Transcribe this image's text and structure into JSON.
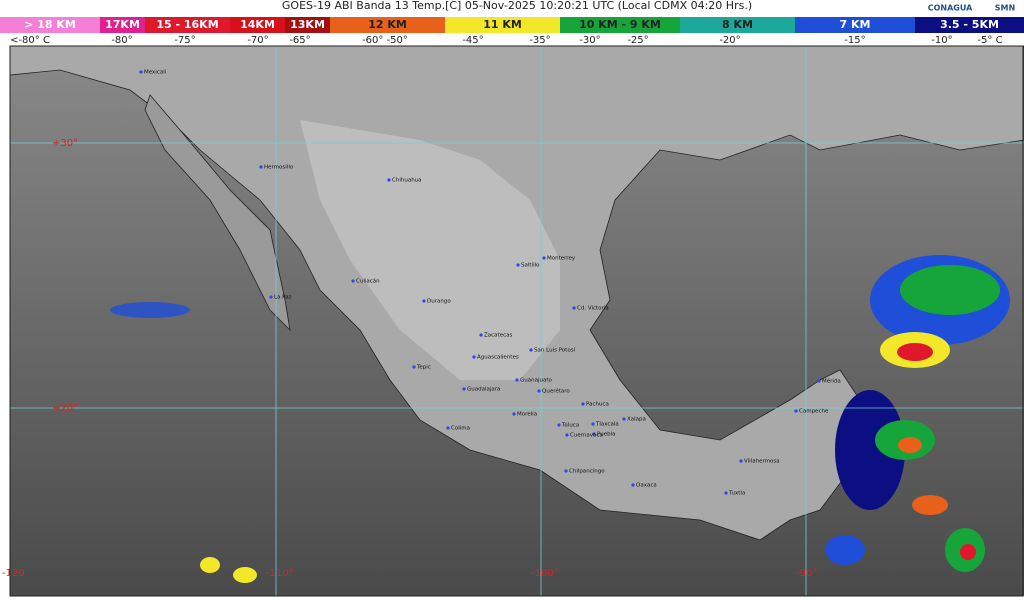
{
  "header": {
    "title": "GOES-19 ABI Banda 13 Temp.[C] 05-Nov-2025 10:20:21 UTC (Local CDMX  04:20 Hrs.)",
    "scale": [
      {
        "label": "> 18 KM",
        "color": "#f47fd6"
      },
      {
        "label": "17KM",
        "color": "#e0208f"
      },
      {
        "label": "15 - 16KM",
        "color": "#e0182c"
      },
      {
        "label": "14KM",
        "color": "#d8101c"
      },
      {
        "label": "13KM",
        "color": "#a50f10"
      },
      {
        "label": "12 KM",
        "color": "#e8611a"
      },
      {
        "label": "11 KM",
        "color": "#f3e72a"
      },
      {
        "label": "10 KM - 9 KM",
        "color": "#16a53a"
      },
      {
        "label": "8 KM",
        "color": "#1ca89a"
      },
      {
        "label": "7 KM",
        "color": "#1f4fd8"
      },
      {
        "label": "3.5 - 5KM",
        "color": "#0b0f82"
      }
    ],
    "temps": [
      "<-80° C",
      "-80°",
      "-75°",
      "-70°",
      "-65°",
      "-60°  -50°",
      "-45°",
      "-35°",
      "-30°",
      "-25°",
      "-20°",
      "-15°",
      "-10°",
      "-5° C"
    ],
    "logos": [
      "CONAGUA",
      "SMN"
    ]
  },
  "map": {
    "lat_labels": [
      "+30°",
      "+20°"
    ],
    "lon_labels": [
      "-120",
      "-110°",
      "-100°",
      "-90°"
    ],
    "cities": [
      "Mexicali",
      "Hermosillo",
      "Chihuahua",
      "Culiacán",
      "La Paz",
      "Durango",
      "Monterrey",
      "Saltillo",
      "Cd. Victoria",
      "Zacatecas",
      "San Luis Potosí",
      "Aguascalientes",
      "Tepic",
      "Guadalajara",
      "Guanajuato",
      "Querétaro",
      "Pachuca",
      "Morelia",
      "Colima",
      "Toluca",
      "Tlaxcala",
      "Puebla",
      "Cuernavaca",
      "Xalapa",
      "Chilpancingo",
      "Oaxaca",
      "Villahermosa",
      "Tuxtla",
      "Campeche",
      "Mérida"
    ]
  }
}
